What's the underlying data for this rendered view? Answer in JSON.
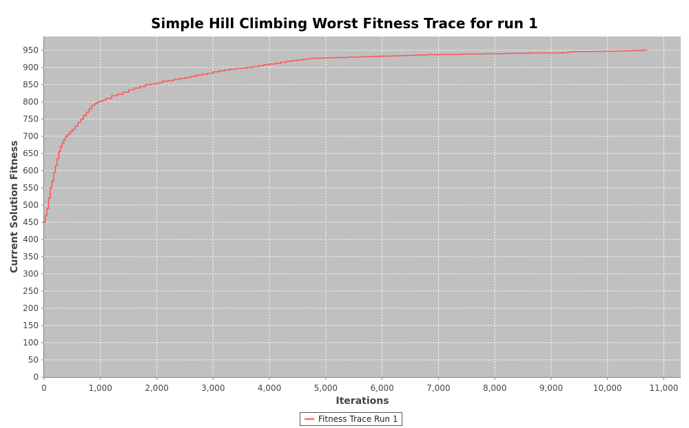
{
  "chart_data": {
    "type": "line",
    "title": "Simple Hill Climbing Worst Fitness Trace for run 1",
    "xlabel": "Iterations",
    "ylabel": "Current Solution Fitness",
    "xlim": [
      0,
      11300
    ],
    "ylim": [
      0,
      990
    ],
    "x_ticks": [
      0,
      1000,
      2000,
      3000,
      4000,
      5000,
      6000,
      7000,
      8000,
      9000,
      10000,
      11000
    ],
    "x_tick_labels": [
      "0",
      "1,000",
      "2,000",
      "3,000",
      "4,000",
      "5,000",
      "6,000",
      "7,000",
      "8,000",
      "9,000",
      "10,000",
      "11,000"
    ],
    "y_ticks": [
      0,
      50,
      100,
      150,
      200,
      250,
      300,
      350,
      400,
      450,
      500,
      550,
      600,
      650,
      700,
      750,
      800,
      850,
      900,
      950
    ],
    "grid": true,
    "background": "#c0c0c0",
    "line_color": "#ff5555",
    "legend_position": "bottom-center",
    "series": [
      {
        "name": "Fitness Trace Run 1",
        "x": [
          0,
          20,
          50,
          80,
          110,
          140,
          170,
          200,
          230,
          260,
          290,
          320,
          350,
          380,
          420,
          460,
          500,
          550,
          600,
          650,
          700,
          750,
          800,
          850,
          900,
          950,
          1000,
          1050,
          1100,
          1200,
          1300,
          1400,
          1500,
          1600,
          1700,
          1800,
          1900,
          2000,
          2100,
          2200,
          2300,
          2400,
          2500,
          2600,
          2700,
          2800,
          2900,
          3000,
          3100,
          3200,
          3300,
          3400,
          3500,
          3600,
          3700,
          3800,
          3900,
          4000,
          4100,
          4200,
          4300,
          4400,
          4500,
          4600,
          4700,
          4800,
          5000,
          5200,
          5400,
          5600,
          5800,
          6000,
          6200,
          6400,
          6600,
          6800,
          7000,
          7200,
          7400,
          7600,
          7800,
          8000,
          8200,
          8400,
          8600,
          8800,
          9000,
          9200,
          9300,
          9400,
          9600,
          9800,
          10000,
          10200,
          10400,
          10600,
          10700
        ],
        "values": [
          450,
          470,
          490,
          520,
          550,
          570,
          595,
          615,
          635,
          655,
          670,
          680,
          690,
          700,
          705,
          713,
          720,
          730,
          740,
          750,
          760,
          770,
          780,
          790,
          795,
          800,
          802,
          805,
          810,
          818,
          822,
          828,
          835,
          840,
          845,
          850,
          852,
          855,
          860,
          862,
          865,
          868,
          870,
          874,
          878,
          880,
          883,
          887,
          890,
          893,
          895,
          897,
          898,
          900,
          902,
          905,
          908,
          910,
          912,
          915,
          918,
          920,
          922,
          924,
          926,
          927,
          928,
          929,
          930,
          931,
          932,
          933,
          934,
          935,
          936,
          937,
          938,
          938,
          939,
          939,
          940,
          940,
          941,
          941,
          942,
          942,
          942,
          943,
          945,
          946,
          946,
          947,
          947,
          948,
          949,
          950,
          950
        ]
      }
    ]
  }
}
